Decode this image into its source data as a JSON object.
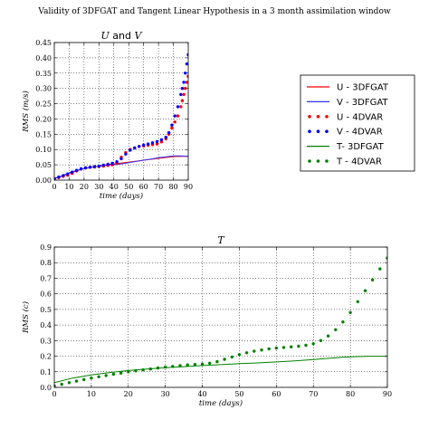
{
  "figure": {
    "suptitle": "Validity of 3DFGAT and Tangent Linear Hypothesis in a 3 month assimilation window"
  },
  "chart_data": [
    {
      "type": "line",
      "id": "uv",
      "title_parts": [
        "U",
        " and ",
        "V"
      ],
      "xlabel": "time (days)",
      "ylabel": "RMS (m/s)",
      "xlim": [
        0,
        90
      ],
      "ylim": [
        0,
        0.45
      ],
      "xticks": [
        0,
        10,
        20,
        30,
        40,
        50,
        60,
        70,
        80,
        90
      ],
      "yticks": [
        "0.00",
        "0.05",
        "0.10",
        "0.15",
        "0.20",
        "0.25",
        "0.30",
        "0.35",
        "0.40",
        "0.45"
      ],
      "grid": true,
      "series": [
        {
          "name": "U - 3DFGAT",
          "color": "#ff0000",
          "style": "line",
          "x": [
            0,
            5,
            10,
            15,
            20,
            25,
            30,
            35,
            40,
            45,
            50,
            55,
            60,
            65,
            70,
            75,
            80,
            85,
            90
          ],
          "y": [
            0.005,
            0.012,
            0.022,
            0.03,
            0.038,
            0.042,
            0.046,
            0.05,
            0.053,
            0.056,
            0.059,
            0.062,
            0.065,
            0.068,
            0.071,
            0.074,
            0.077,
            0.078,
            0.078
          ]
        },
        {
          "name": "V - 3DFGAT",
          "color": "#3333ff",
          "style": "line",
          "x": [
            0,
            5,
            10,
            15,
            20,
            25,
            30,
            35,
            40,
            45,
            50,
            55,
            60,
            65,
            70,
            75,
            80,
            85,
            90
          ],
          "y": [
            0.006,
            0.014,
            0.024,
            0.032,
            0.038,
            0.042,
            0.045,
            0.048,
            0.05,
            0.053,
            0.057,
            0.061,
            0.065,
            0.069,
            0.073,
            0.076,
            0.079,
            0.079,
            0.078
          ]
        },
        {
          "name": "U - 4DVAR",
          "color": "#ff0000",
          "style": "dots",
          "x": [
            0,
            3,
            6,
            9,
            12,
            15,
            18,
            21,
            24,
            27,
            30,
            33,
            36,
            39,
            42,
            45,
            48,
            51,
            54,
            57,
            60,
            63,
            66,
            69,
            72,
            75,
            77,
            79,
            81,
            83,
            85,
            86,
            87,
            88,
            89,
            90
          ],
          "y": [
            0.004,
            0.008,
            0.012,
            0.016,
            0.022,
            0.03,
            0.036,
            0.04,
            0.042,
            0.043,
            0.044,
            0.046,
            0.048,
            0.05,
            0.055,
            0.075,
            0.09,
            0.1,
            0.105,
            0.11,
            0.112,
            0.114,
            0.116,
            0.118,
            0.125,
            0.135,
            0.15,
            0.17,
            0.19,
            0.21,
            0.24,
            0.26,
            0.28,
            0.3,
            0.32,
            0.34
          ]
        },
        {
          "name": "V - 4DVAR",
          "color": "#0000ff",
          "style": "dots",
          "x": [
            0,
            3,
            6,
            9,
            12,
            15,
            18,
            21,
            24,
            27,
            30,
            33,
            36,
            39,
            42,
            45,
            48,
            51,
            54,
            57,
            60,
            63,
            66,
            69,
            72,
            75,
            77,
            79,
            81,
            83,
            85,
            86,
            87,
            88,
            89,
            90
          ],
          "y": [
            0.005,
            0.01,
            0.015,
            0.02,
            0.026,
            0.032,
            0.037,
            0.04,
            0.042,
            0.044,
            0.046,
            0.049,
            0.052,
            0.055,
            0.06,
            0.07,
            0.085,
            0.098,
            0.105,
            0.11,
            0.115,
            0.118,
            0.122,
            0.126,
            0.132,
            0.14,
            0.155,
            0.18,
            0.21,
            0.24,
            0.28,
            0.3,
            0.32,
            0.35,
            0.38,
            0.41
          ]
        }
      ]
    },
    {
      "type": "line",
      "id": "t",
      "title_parts": [
        "T"
      ],
      "xlabel": "time (days)",
      "ylabel": "RMS (c)",
      "xlim": [
        0,
        90
      ],
      "ylim": [
        0,
        0.9
      ],
      "xticks": [
        0,
        10,
        20,
        30,
        40,
        50,
        60,
        70,
        80,
        90
      ],
      "yticks": [
        "0.0",
        "0.1",
        "0.2",
        "0.3",
        "0.4",
        "0.5",
        "0.6",
        "0.7",
        "0.8",
        "0.9"
      ],
      "grid": true,
      "series": [
        {
          "name": "T- 3DFGAT",
          "color": "#008000",
          "style": "line",
          "x": [
            0,
            5,
            10,
            15,
            20,
            25,
            30,
            35,
            40,
            45,
            50,
            55,
            60,
            65,
            70,
            75,
            80,
            85,
            90
          ],
          "y": [
            0.03,
            0.06,
            0.08,
            0.095,
            0.108,
            0.118,
            0.126,
            0.133,
            0.14,
            0.146,
            0.152,
            0.157,
            0.163,
            0.17,
            0.178,
            0.188,
            0.196,
            0.2,
            0.2
          ]
        },
        {
          "name": "T - 4DVAR",
          "color": "#008000",
          "style": "dots",
          "x": [
            0,
            2,
            4,
            6,
            8,
            10,
            12,
            14,
            16,
            18,
            20,
            22,
            24,
            26,
            28,
            30,
            32,
            34,
            36,
            38,
            40,
            42,
            44,
            46,
            48,
            50,
            52,
            54,
            56,
            58,
            60,
            62,
            64,
            66,
            68,
            70,
            72,
            74,
            76,
            78,
            80,
            82,
            84,
            86,
            88,
            90
          ],
          "y": [
            0.01,
            0.02,
            0.03,
            0.04,
            0.05,
            0.06,
            0.068,
            0.076,
            0.084,
            0.092,
            0.1,
            0.106,
            0.112,
            0.118,
            0.124,
            0.13,
            0.135,
            0.14,
            0.144,
            0.147,
            0.15,
            0.155,
            0.165,
            0.18,
            0.195,
            0.21,
            0.222,
            0.232,
            0.24,
            0.247,
            0.252,
            0.256,
            0.26,
            0.264,
            0.27,
            0.28,
            0.3,
            0.33,
            0.37,
            0.42,
            0.48,
            0.55,
            0.62,
            0.69,
            0.76,
            0.83
          ]
        }
      ]
    }
  ],
  "legend": {
    "placement": "right of top plot",
    "entries": [
      {
        "label": "U - 3DFGAT",
        "color": "#ff0000",
        "style": "line"
      },
      {
        "label": "V - 3DFGAT",
        "color": "#3333ff",
        "style": "line"
      },
      {
        "label": "U - 4DVAR",
        "color": "#ff0000",
        "style": "dots"
      },
      {
        "label": "V - 4DVAR",
        "color": "#0000ff",
        "style": "dots"
      },
      {
        "label": "T- 3DFGAT",
        "color": "#008000",
        "style": "line"
      },
      {
        "label": "T - 4DVAR",
        "color": "#008000",
        "style": "dots"
      }
    ]
  }
}
